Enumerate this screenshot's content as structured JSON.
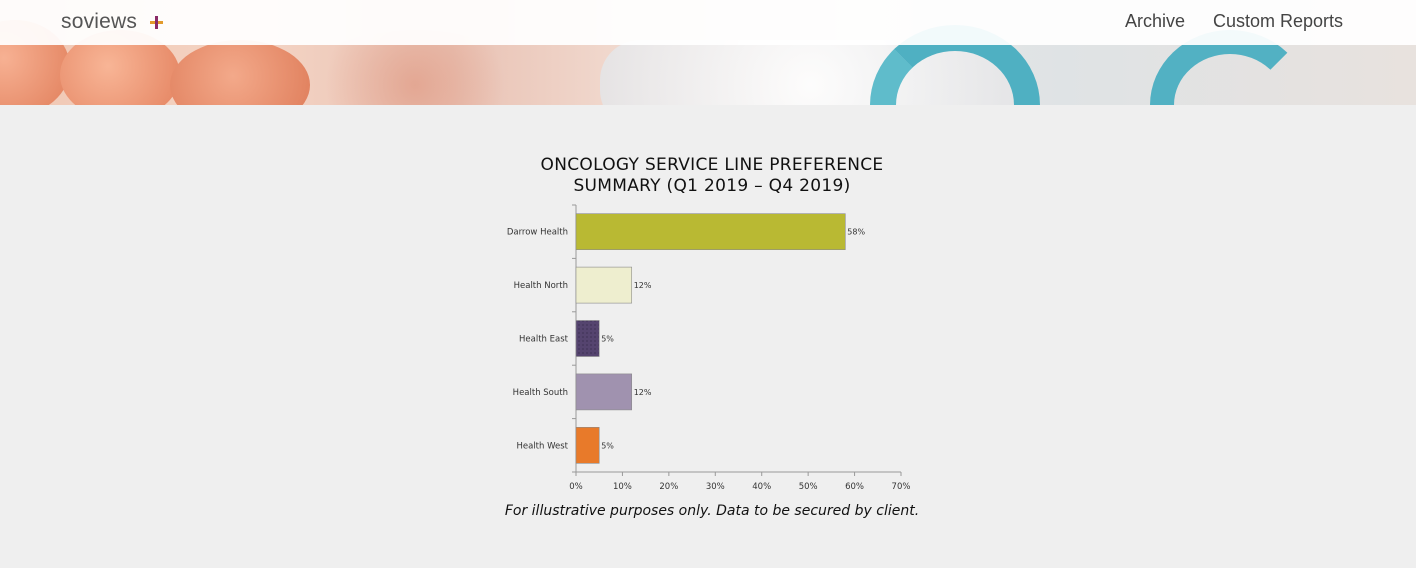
{
  "header": {
    "logo_text": "soviews",
    "nav": [
      {
        "label": "Archive"
      },
      {
        "label": "Custom Reports"
      }
    ]
  },
  "chart_data": {
    "type": "bar",
    "orientation": "horizontal",
    "title_line1": "ONCOLOGY SERVICE LINE PREFERENCE",
    "title_line2": "SUMMARY (Q1 2019 – Q4 2019)",
    "categories": [
      "Darrow Health",
      "Health North",
      "Health East",
      "Health South",
      "Health West"
    ],
    "values": [
      58,
      12,
      5,
      12,
      5
    ],
    "value_labels": [
      "58%",
      "12%",
      "5%",
      "12%",
      "5%"
    ],
    "colors": [
      "#b9b933",
      "#eeeecf",
      "#55446f",
      "#a092af",
      "#e87a2a"
    ],
    "xlim": [
      0,
      70
    ],
    "x_ticks": [
      0,
      10,
      20,
      30,
      40,
      50,
      60,
      70
    ],
    "x_tick_labels": [
      "0%",
      "10%",
      "20%",
      "30%",
      "40%",
      "50%",
      "60%",
      "70%"
    ],
    "grid": false
  },
  "caption": "For illustrative purposes only. Data to be secured by client."
}
